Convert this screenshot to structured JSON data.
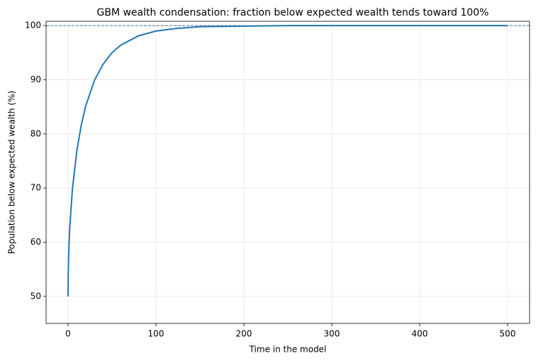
{
  "chart_data": {
    "type": "line",
    "title": "GBM wealth condensation: fraction below expected wealth tends toward 100%",
    "x_label": "Time in the model",
    "y_label": "Population below expected wealth (%)",
    "x": [
      0,
      0.2,
      0.5,
      1,
      2,
      5,
      10,
      15,
      20,
      30,
      40,
      50,
      60,
      80,
      100,
      125,
      150,
      200,
      250,
      300,
      400,
      500
    ],
    "series": [
      {
        "name": "Population below expected wealth",
        "color": "#1f77b4",
        "values": [
          50,
          54.1,
          56.5,
          59.2,
          62.9,
          69.9,
          76.9,
          81.6,
          85.1,
          89.9,
          92.9,
          95.0,
          96.4,
          98.1,
          99.0,
          99.5,
          99.8,
          99.9,
          100.0,
          100.0,
          100.0,
          100.0
        ]
      }
    ],
    "reference_line": {
      "value": 100,
      "color": "#3f6f8f"
    },
    "xlim": [
      -25,
      525
    ],
    "ylim": [
      45,
      100.8
    ],
    "xticks": [
      0,
      100,
      200,
      300,
      400,
      500
    ],
    "yticks": [
      50,
      60,
      70,
      80,
      90,
      100
    ],
    "grid": true
  }
}
